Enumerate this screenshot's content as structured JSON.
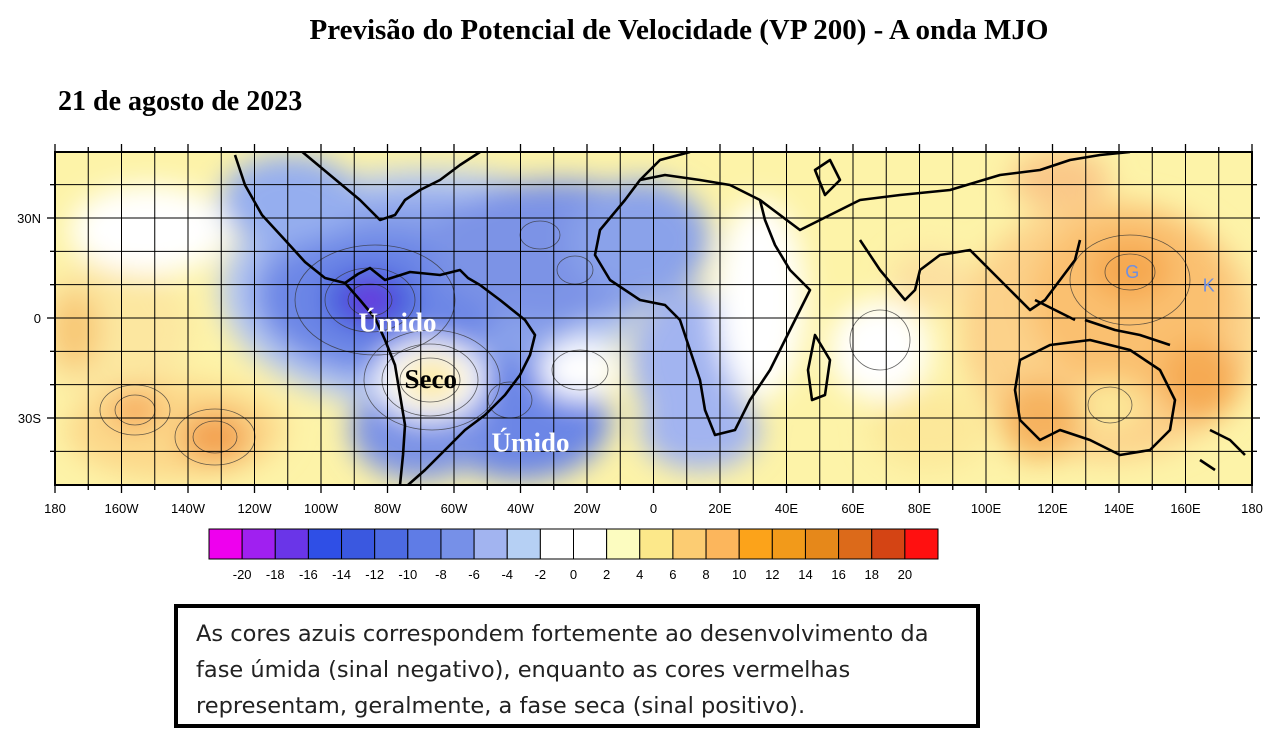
{
  "title": "Previsão do Potencial de Velocidade (VP 200) - A onda MJO",
  "date": "21 de agosto de 2023",
  "map": {
    "lon_ticks": [
      "180",
      "160W",
      "140W",
      "120W",
      "100W",
      "80W",
      "60W",
      "40W",
      "20W",
      "0",
      "20E",
      "40E",
      "60E",
      "80E",
      "100E",
      "120E",
      "140E",
      "160E",
      "180"
    ],
    "lat_ticks": [
      "30N",
      "0",
      "30S"
    ],
    "annotations": [
      {
        "text": "Úmido",
        "lon": -77,
        "lat": -4
      },
      {
        "text": "Seco",
        "lon": -67,
        "lat": -21
      },
      {
        "text": "Úmido",
        "lon": -37,
        "lat": -40
      }
    ],
    "minor_labels": [
      {
        "text": "G",
        "lon": 144,
        "lat": 12
      },
      {
        "text": "K",
        "lon": 167,
        "lat": 8
      }
    ]
  },
  "colorbar": {
    "labels": [
      "-20",
      "-18",
      "-16",
      "-14",
      "-12",
      "-10",
      "-8",
      "-6",
      "-4",
      "-2",
      "0",
      "2",
      "4",
      "6",
      "8",
      "10",
      "12",
      "14",
      "16",
      "18",
      "20"
    ],
    "colors": [
      "#ee00ee",
      "#a020f0",
      "#6a35e8",
      "#2f4fe6",
      "#3a58e0",
      "#4c6ae2",
      "#5f7ce6",
      "#7690e8",
      "#a2b4f0",
      "#b6d0f4",
      "#ffffff",
      "#ffffff",
      "#fcfcc0",
      "#fce88a",
      "#fccc72",
      "#fcb65c",
      "#fca31a",
      "#f29a1a",
      "#e6881a",
      "#dc6a1a",
      "#d44414",
      "#ff1010"
    ]
  },
  "note": {
    "lines": [
      "As cores azuis correspondem fortemente ao desenvolvimento da",
      "fase úmida (sinal negativo), enquanto as cores vermelhas",
      "representam, geralmente, a fase seca (sinal positivo)."
    ]
  }
}
